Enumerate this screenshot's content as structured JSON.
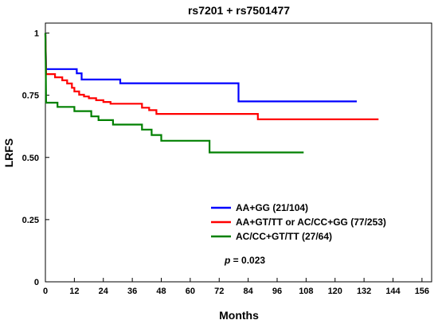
{
  "chart_data": {
    "type": "line",
    "title": "rs7201 + rs7501477",
    "xlabel": "Months",
    "ylabel": "LRFS",
    "xlim": [
      0,
      160
    ],
    "ylim": [
      0,
      1.04
    ],
    "x_ticks": [
      0,
      12,
      24,
      36,
      48,
      60,
      72,
      84,
      96,
      108,
      120,
      132,
      144,
      156
    ],
    "y_ticks": [
      {
        "value": 0,
        "label": "0"
      },
      {
        "value": 0.25,
        "label": "0.25"
      },
      {
        "value": 0.5,
        "label": "0.50"
      },
      {
        "value": 0.75,
        "label": "0.75"
      },
      {
        "value": 1,
        "label": "1"
      }
    ],
    "grid": false,
    "legend_position": "bottom-right",
    "annotation": {
      "prefix": "p",
      "text": " = 0.023"
    },
    "series": [
      {
        "name": "AA+GG (21/104)",
        "color": "#0000ff",
        "points": [
          [
            0,
            1.0
          ],
          [
            0.3,
            0.855
          ],
          [
            13,
            0.855
          ],
          [
            13,
            0.838
          ],
          [
            15,
            0.838
          ],
          [
            15,
            0.813
          ],
          [
            31,
            0.813
          ],
          [
            31,
            0.798
          ],
          [
            80,
            0.798
          ],
          [
            80,
            0.725
          ],
          [
            129,
            0.725
          ]
        ]
      },
      {
        "name": "AA+GT/TT or AC/CC+GG (77/253)",
        "color": "#ff0000",
        "points": [
          [
            0,
            1.0
          ],
          [
            0.3,
            0.835
          ],
          [
            4,
            0.835
          ],
          [
            4,
            0.822
          ],
          [
            7,
            0.822
          ],
          [
            7,
            0.81
          ],
          [
            9,
            0.81
          ],
          [
            9,
            0.797
          ],
          [
            11,
            0.797
          ],
          [
            11,
            0.78
          ],
          [
            12,
            0.78
          ],
          [
            12,
            0.765
          ],
          [
            14,
            0.765
          ],
          [
            14,
            0.752
          ],
          [
            16,
            0.752
          ],
          [
            16,
            0.745
          ],
          [
            18,
            0.745
          ],
          [
            18,
            0.738
          ],
          [
            21,
            0.738
          ],
          [
            21,
            0.73
          ],
          [
            24,
            0.73
          ],
          [
            24,
            0.723
          ],
          [
            27,
            0.723
          ],
          [
            27,
            0.716
          ],
          [
            40,
            0.716
          ],
          [
            40,
            0.7
          ],
          [
            43,
            0.7
          ],
          [
            43,
            0.69
          ],
          [
            46,
            0.69
          ],
          [
            46,
            0.675
          ],
          [
            88,
            0.675
          ],
          [
            88,
            0.653
          ],
          [
            138,
            0.653
          ]
        ]
      },
      {
        "name": "AC/CC+GT/TT (27/64)",
        "color": "#008000",
        "points": [
          [
            0,
            1.0
          ],
          [
            0.3,
            0.72
          ],
          [
            5,
            0.72
          ],
          [
            5,
            0.703
          ],
          [
            12,
            0.703
          ],
          [
            12,
            0.686
          ],
          [
            19,
            0.686
          ],
          [
            19,
            0.665
          ],
          [
            22,
            0.665
          ],
          [
            22,
            0.65
          ],
          [
            28,
            0.65
          ],
          [
            28,
            0.632
          ],
          [
            40,
            0.632
          ],
          [
            40,
            0.612
          ],
          [
            44,
            0.612
          ],
          [
            44,
            0.59
          ],
          [
            48,
            0.59
          ],
          [
            48,
            0.567
          ],
          [
            68,
            0.567
          ],
          [
            68,
            0.52
          ],
          [
            107,
            0.52
          ]
        ]
      }
    ]
  }
}
